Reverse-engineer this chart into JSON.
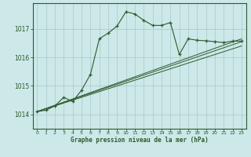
{
  "title": "Graphe pression niveau de la mer (hPa)",
  "bg_color": "#cce8e8",
  "grid_color": "#b0cccc",
  "line_color": "#2d5a2d",
  "xlim": [
    -0.5,
    23.5
  ],
  "ylim": [
    1013.5,
    1017.9
  ],
  "yticks": [
    1014,
    1015,
    1016,
    1017
  ],
  "xticks": [
    0,
    1,
    2,
    3,
    4,
    5,
    6,
    7,
    8,
    9,
    10,
    11,
    12,
    13,
    14,
    15,
    16,
    17,
    18,
    19,
    20,
    21,
    22,
    23
  ],
  "series1_x": [
    0,
    1,
    2,
    3,
    4,
    5,
    6,
    7,
    8,
    9,
    10,
    11,
    12,
    13,
    14,
    15,
    16,
    17,
    18,
    19,
    20,
    21,
    22,
    23
  ],
  "series1_y": [
    1014.1,
    1014.15,
    1014.3,
    1014.6,
    1014.45,
    1014.85,
    1015.4,
    1016.65,
    1016.85,
    1017.1,
    1017.6,
    1017.52,
    1017.3,
    1017.12,
    1017.12,
    1017.22,
    1016.1,
    1016.65,
    1016.6,
    1016.58,
    1016.55,
    1016.52,
    1016.57,
    1016.57
  ],
  "line2_x": [
    0,
    23
  ],
  "line2_y": [
    1014.1,
    1016.4
  ],
  "line3_x": [
    0,
    23
  ],
  "line3_y": [
    1014.1,
    1016.55
  ],
  "line4_x": [
    0,
    23
  ],
  "line4_y": [
    1014.1,
    1016.65
  ]
}
